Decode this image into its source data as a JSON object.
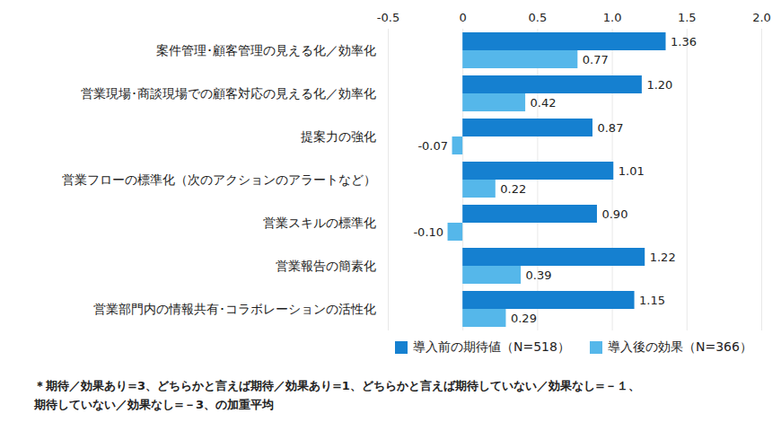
{
  "chart_data": {
    "type": "bar",
    "orientation": "horizontal",
    "categories": [
      "案件管理･顧客管理の見える化／効率化",
      "営業現場･商談現場での顧客対応の見える化／効率化",
      "提案力の強化",
      "営業フローの標準化（次のアクションのアラートなど）",
      "営業スキルの標準化",
      "営業報告の簡素化",
      "営業部門内の情報共有･コラボレーションの活性化"
    ],
    "series": [
      {
        "name": "導入前の期待値（N=518）",
        "color": "#1580d0",
        "values": [
          1.36,
          1.2,
          0.87,
          1.01,
          0.9,
          1.22,
          1.15
        ],
        "value_labels": [
          "1.36",
          "1.20",
          "0.87",
          "1.01",
          "0.90",
          "1.22",
          "1.15"
        ]
      },
      {
        "name": "導入後の効果（N=366）",
        "color": "#55b7ea",
        "values": [
          0.77,
          0.42,
          -0.07,
          0.22,
          -0.1,
          0.39,
          0.29
        ],
        "value_labels": [
          "0.77",
          "0.42",
          "-0.07",
          "0.22",
          "-0.10",
          "0.39",
          "0.29"
        ]
      }
    ],
    "xlim": [
      -0.5,
      2.0
    ],
    "xticks": [
      -0.5,
      0,
      0.5,
      {
        "value": 1,
        "label": "1.0"
      },
      1.5,
      {
        "value": 2,
        "label": "2.0"
      }
    ],
    "grid": true,
    "data_labels": true,
    "legend": "bottom",
    "caption": "＊期待／効果あり=3、どちらかと言えば期待／効果あり=1、どちらかと言えば期待していない／効果なし=－１、\n期待していない／効果なし=－3、の加重平均"
  }
}
